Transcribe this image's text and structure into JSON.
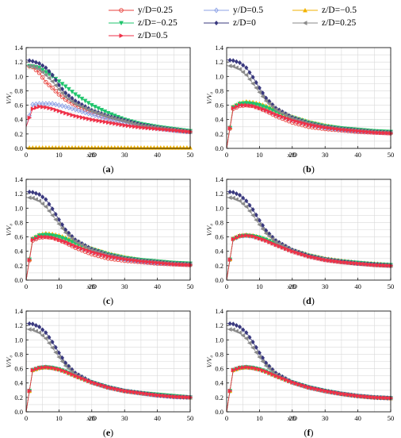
{
  "legend": {
    "entries": [
      {
        "key": "s1",
        "label": "y/D=0.25",
        "color": "#e8413c",
        "marker": "open-circle"
      },
      {
        "key": "s2",
        "label": "y/D=0.5",
        "color": "#8da2e6",
        "marker": "open-diamond"
      },
      {
        "key": "s3",
        "label": "z/D=−0.5",
        "color": "#f2b200",
        "marker": "triangle"
      },
      {
        "key": "s4",
        "label": "z/D=−0.25",
        "color": "#1fc46c",
        "marker": "triangle-down"
      },
      {
        "key": "s5",
        "label": "z/D=0",
        "color": "#39387e",
        "marker": "diamond"
      },
      {
        "key": "s6",
        "label": "z/D=0.25",
        "color": "#8a8a8a",
        "marker": "triangle-left"
      },
      {
        "key": "s7",
        "label": "z/D=0.5",
        "color": "#ef3048",
        "marker": "triangle-right"
      }
    ]
  },
  "chart_data": [
    {
      "type": "line",
      "caption": "(a)",
      "xlabel": "x/D",
      "ylabel": "V/V₀",
      "xlim": [
        0,
        50
      ],
      "ylim": [
        0,
        1.4
      ],
      "xticks": [
        0,
        10,
        20,
        30,
        40,
        50
      ],
      "yticks": [
        0,
        0.2,
        0.4,
        0.6,
        0.8,
        1.0,
        1.2,
        1.4
      ],
      "grid": true,
      "x": [
        0,
        2,
        4,
        6,
        8,
        10,
        12,
        15,
        20,
        25,
        30,
        35,
        40,
        45,
        50
      ],
      "series": [
        {
          "key": "s1",
          "values": [
            1.15,
            1.13,
            1.05,
            0.92,
            0.84,
            0.75,
            0.68,
            0.6,
            0.5,
            0.42,
            0.36,
            0.31,
            0.28,
            0.25,
            0.23
          ]
        },
        {
          "key": "s2",
          "values": [
            0.3,
            0.61,
            0.62,
            0.62,
            0.62,
            0.6,
            0.58,
            0.54,
            0.47,
            0.41,
            0.36,
            0.31,
            0.28,
            0.25,
            0.23
          ]
        },
        {
          "key": "s3",
          "values": [
            0.01,
            0.01,
            0.01,
            0.01,
            0.01,
            0.01,
            0.01,
            0.01,
            0.01,
            0.01,
            0.01,
            0.01,
            0.01,
            0.01,
            0.01
          ]
        },
        {
          "key": "s4",
          "values": [
            1.15,
            1.14,
            1.12,
            1.06,
            1.0,
            0.93,
            0.86,
            0.75,
            0.6,
            0.49,
            0.4,
            0.34,
            0.3,
            0.27,
            0.24
          ]
        },
        {
          "key": "s5",
          "values": [
            1.23,
            1.21,
            1.18,
            1.12,
            1.02,
            0.88,
            0.77,
            0.66,
            0.53,
            0.45,
            0.39,
            0.33,
            0.29,
            0.26,
            0.23
          ]
        },
        {
          "key": "s6",
          "values": [
            1.15,
            1.14,
            1.1,
            1.02,
            0.93,
            0.82,
            0.72,
            0.62,
            0.52,
            0.44,
            0.38,
            0.32,
            0.29,
            0.26,
            0.23
          ]
        },
        {
          "key": "s7",
          "values": [
            0.3,
            0.55,
            0.58,
            0.57,
            0.55,
            0.52,
            0.49,
            0.45,
            0.4,
            0.36,
            0.32,
            0.29,
            0.27,
            0.25,
            0.23
          ]
        }
      ]
    },
    {
      "type": "line",
      "caption": "(b)",
      "xlabel": "x/D",
      "ylabel": "V/V₀",
      "xlim": [
        0,
        50
      ],
      "ylim": [
        0,
        1.4
      ],
      "xticks": [
        0,
        10,
        20,
        30,
        40,
        50
      ],
      "yticks": [
        0,
        0.2,
        0.4,
        0.6,
        0.8,
        1.0,
        1.2,
        1.4
      ],
      "grid": true,
      "x": [
        0,
        2,
        4,
        6,
        8,
        10,
        12,
        15,
        20,
        25,
        30,
        35,
        40,
        45,
        50
      ],
      "series": [
        {
          "key": "s1",
          "values": [
            0.0,
            0.55,
            0.59,
            0.6,
            0.59,
            0.56,
            0.52,
            0.45,
            0.36,
            0.3,
            0.27,
            0.25,
            0.23,
            0.22,
            0.21
          ]
        },
        {
          "key": "s2",
          "values": [
            0.0,
            0.57,
            0.61,
            0.62,
            0.61,
            0.58,
            0.54,
            0.48,
            0.4,
            0.34,
            0.29,
            0.26,
            0.24,
            0.23,
            0.22
          ]
        },
        {
          "key": "s3",
          "values": [
            0.0,
            0.58,
            0.63,
            0.65,
            0.64,
            0.62,
            0.59,
            0.53,
            0.44,
            0.37,
            0.32,
            0.28,
            0.26,
            0.24,
            0.23
          ]
        },
        {
          "key": "s4",
          "values": [
            0.0,
            0.57,
            0.62,
            0.63,
            0.62,
            0.6,
            0.57,
            0.51,
            0.43,
            0.36,
            0.31,
            0.28,
            0.26,
            0.24,
            0.23
          ]
        },
        {
          "key": "s5",
          "values": [
            1.23,
            1.22,
            1.19,
            1.12,
            0.99,
            0.84,
            0.7,
            0.56,
            0.43,
            0.35,
            0.3,
            0.27,
            0.25,
            0.23,
            0.22
          ]
        },
        {
          "key": "s6",
          "values": [
            1.15,
            1.14,
            1.1,
            1.02,
            0.9,
            0.78,
            0.66,
            0.54,
            0.42,
            0.35,
            0.3,
            0.27,
            0.25,
            0.23,
            0.22
          ]
        },
        {
          "key": "s7",
          "values": [
            0.0,
            0.56,
            0.6,
            0.6,
            0.59,
            0.56,
            0.53,
            0.47,
            0.39,
            0.33,
            0.29,
            0.26,
            0.24,
            0.22,
            0.21
          ]
        }
      ]
    },
    {
      "type": "line",
      "caption": "(c)",
      "xlabel": "x/D",
      "ylabel": "V/V₀",
      "xlim": [
        0,
        50
      ],
      "ylim": [
        0,
        1.4
      ],
      "xticks": [
        0,
        10,
        20,
        30,
        40,
        50
      ],
      "yticks": [
        0,
        0.2,
        0.4,
        0.6,
        0.8,
        1.0,
        1.2,
        1.4
      ],
      "grid": true,
      "x": [
        0,
        2,
        4,
        6,
        8,
        10,
        12,
        15,
        20,
        25,
        30,
        35,
        40,
        45,
        50
      ],
      "series": [
        {
          "key": "s1",
          "values": [
            0.0,
            0.55,
            0.59,
            0.6,
            0.59,
            0.56,
            0.52,
            0.45,
            0.36,
            0.3,
            0.27,
            0.25,
            0.23,
            0.22,
            0.21
          ]
        },
        {
          "key": "s2",
          "values": [
            0.0,
            0.57,
            0.61,
            0.62,
            0.61,
            0.58,
            0.54,
            0.48,
            0.4,
            0.34,
            0.29,
            0.26,
            0.24,
            0.23,
            0.22
          ]
        },
        {
          "key": "s3",
          "values": [
            0.0,
            0.58,
            0.63,
            0.65,
            0.64,
            0.62,
            0.59,
            0.53,
            0.44,
            0.37,
            0.32,
            0.28,
            0.26,
            0.24,
            0.23
          ]
        },
        {
          "key": "s4",
          "values": [
            0.0,
            0.57,
            0.62,
            0.63,
            0.62,
            0.6,
            0.57,
            0.51,
            0.43,
            0.36,
            0.31,
            0.28,
            0.26,
            0.24,
            0.23
          ]
        },
        {
          "key": "s5",
          "values": [
            1.23,
            1.22,
            1.19,
            1.12,
            0.99,
            0.84,
            0.7,
            0.56,
            0.43,
            0.35,
            0.3,
            0.27,
            0.25,
            0.23,
            0.22
          ]
        },
        {
          "key": "s6",
          "values": [
            1.15,
            1.14,
            1.1,
            1.02,
            0.9,
            0.78,
            0.66,
            0.54,
            0.42,
            0.35,
            0.3,
            0.27,
            0.25,
            0.23,
            0.22
          ]
        },
        {
          "key": "s7",
          "values": [
            0.0,
            0.56,
            0.6,
            0.6,
            0.59,
            0.56,
            0.53,
            0.47,
            0.39,
            0.33,
            0.29,
            0.26,
            0.24,
            0.22,
            0.21
          ]
        }
      ]
    },
    {
      "type": "line",
      "caption": "(d)",
      "xlabel": "x/D",
      "ylabel": "V/V₀",
      "xlim": [
        0,
        50
      ],
      "ylim": [
        0,
        1.4
      ],
      "xticks": [
        0,
        10,
        20,
        30,
        40,
        50
      ],
      "yticks": [
        0,
        0.2,
        0.4,
        0.6,
        0.8,
        1.0,
        1.2,
        1.4
      ],
      "grid": true,
      "x": [
        0,
        2,
        4,
        6,
        8,
        10,
        12,
        15,
        20,
        25,
        30,
        35,
        40,
        45,
        50
      ],
      "series": [
        {
          "key": "s1",
          "values": [
            0.0,
            0.57,
            0.61,
            0.62,
            0.61,
            0.58,
            0.55,
            0.49,
            0.4,
            0.33,
            0.28,
            0.25,
            0.23,
            0.21,
            0.2
          ]
        },
        {
          "key": "s2",
          "values": [
            0.0,
            0.57,
            0.61,
            0.62,
            0.61,
            0.59,
            0.56,
            0.5,
            0.41,
            0.34,
            0.29,
            0.26,
            0.24,
            0.22,
            0.21
          ]
        },
        {
          "key": "s3",
          "values": [
            0.0,
            0.58,
            0.62,
            0.63,
            0.62,
            0.6,
            0.57,
            0.51,
            0.42,
            0.35,
            0.3,
            0.27,
            0.24,
            0.23,
            0.21
          ]
        },
        {
          "key": "s4",
          "values": [
            0.0,
            0.57,
            0.61,
            0.62,
            0.61,
            0.59,
            0.56,
            0.5,
            0.41,
            0.34,
            0.29,
            0.26,
            0.24,
            0.22,
            0.21
          ]
        },
        {
          "key": "s5",
          "values": [
            1.23,
            1.22,
            1.18,
            1.1,
            0.98,
            0.83,
            0.69,
            0.55,
            0.42,
            0.34,
            0.29,
            0.26,
            0.23,
            0.22,
            0.2
          ]
        },
        {
          "key": "s6",
          "values": [
            1.15,
            1.14,
            1.1,
            1.02,
            0.9,
            0.77,
            0.65,
            0.53,
            0.41,
            0.33,
            0.29,
            0.25,
            0.23,
            0.21,
            0.2
          ]
        },
        {
          "key": "s7",
          "values": [
            0.0,
            0.57,
            0.61,
            0.62,
            0.61,
            0.58,
            0.55,
            0.49,
            0.4,
            0.33,
            0.28,
            0.25,
            0.23,
            0.21,
            0.2
          ]
        }
      ]
    },
    {
      "type": "line",
      "caption": "(e)",
      "xlabel": "x/D",
      "ylabel": "V/V₀",
      "xlim": [
        0,
        50
      ],
      "ylim": [
        0,
        1.4
      ],
      "xticks": [
        0,
        10,
        20,
        30,
        40,
        50
      ],
      "yticks": [
        0,
        0.2,
        0.4,
        0.6,
        0.8,
        1.0,
        1.2,
        1.4
      ],
      "grid": true,
      "x": [
        0,
        2,
        4,
        6,
        8,
        10,
        12,
        15,
        20,
        25,
        30,
        35,
        40,
        45,
        50
      ],
      "series": [
        {
          "key": "s1",
          "values": [
            0.0,
            0.58,
            0.61,
            0.62,
            0.61,
            0.59,
            0.56,
            0.5,
            0.41,
            0.34,
            0.29,
            0.26,
            0.23,
            0.21,
            0.2
          ]
        },
        {
          "key": "s2",
          "values": [
            0.0,
            0.58,
            0.61,
            0.62,
            0.61,
            0.59,
            0.56,
            0.5,
            0.41,
            0.34,
            0.29,
            0.26,
            0.23,
            0.21,
            0.2
          ]
        },
        {
          "key": "s3",
          "values": [
            0.0,
            0.58,
            0.61,
            0.62,
            0.61,
            0.59,
            0.56,
            0.5,
            0.41,
            0.34,
            0.29,
            0.26,
            0.24,
            0.22,
            0.2
          ]
        },
        {
          "key": "s4",
          "values": [
            0.0,
            0.58,
            0.61,
            0.62,
            0.61,
            0.59,
            0.56,
            0.5,
            0.41,
            0.34,
            0.29,
            0.26,
            0.24,
            0.22,
            0.2
          ]
        },
        {
          "key": "s5",
          "values": [
            1.23,
            1.22,
            1.18,
            1.1,
            0.97,
            0.82,
            0.68,
            0.54,
            0.41,
            0.34,
            0.29,
            0.26,
            0.23,
            0.21,
            0.2
          ]
        },
        {
          "key": "s6",
          "values": [
            1.15,
            1.14,
            1.1,
            1.02,
            0.89,
            0.76,
            0.64,
            0.52,
            0.4,
            0.33,
            0.29,
            0.25,
            0.23,
            0.21,
            0.2
          ]
        },
        {
          "key": "s7",
          "values": [
            0.0,
            0.58,
            0.61,
            0.62,
            0.61,
            0.59,
            0.56,
            0.5,
            0.41,
            0.34,
            0.29,
            0.26,
            0.23,
            0.21,
            0.2
          ]
        }
      ]
    },
    {
      "type": "line",
      "caption": "(f)",
      "xlabel": "x/D",
      "ylabel": "V/V₀",
      "xlim": [
        0,
        50
      ],
      "ylim": [
        0,
        1.4
      ],
      "xticks": [
        0,
        10,
        20,
        30,
        40,
        50
      ],
      "yticks": [
        0,
        0.2,
        0.4,
        0.6,
        0.8,
        1.0,
        1.2,
        1.4
      ],
      "grid": true,
      "x": [
        0,
        2,
        4,
        6,
        8,
        10,
        12,
        15,
        20,
        25,
        30,
        35,
        40,
        45,
        50
      ],
      "series": [
        {
          "key": "s1",
          "values": [
            0.0,
            0.58,
            0.61,
            0.62,
            0.61,
            0.59,
            0.56,
            0.5,
            0.41,
            0.34,
            0.29,
            0.25,
            0.22,
            0.2,
            0.19
          ]
        },
        {
          "key": "s2",
          "values": [
            0.0,
            0.58,
            0.61,
            0.62,
            0.61,
            0.59,
            0.56,
            0.5,
            0.41,
            0.34,
            0.29,
            0.25,
            0.22,
            0.2,
            0.19
          ]
        },
        {
          "key": "s3",
          "values": [
            0.0,
            0.58,
            0.61,
            0.62,
            0.61,
            0.59,
            0.56,
            0.5,
            0.41,
            0.34,
            0.29,
            0.25,
            0.22,
            0.2,
            0.19
          ]
        },
        {
          "key": "s4",
          "values": [
            0.0,
            0.58,
            0.61,
            0.62,
            0.61,
            0.59,
            0.56,
            0.5,
            0.41,
            0.34,
            0.29,
            0.25,
            0.22,
            0.2,
            0.19
          ]
        },
        {
          "key": "s5",
          "values": [
            1.23,
            1.22,
            1.18,
            1.1,
            0.97,
            0.82,
            0.68,
            0.54,
            0.41,
            0.34,
            0.29,
            0.25,
            0.22,
            0.2,
            0.19
          ]
        },
        {
          "key": "s6",
          "values": [
            1.15,
            1.14,
            1.1,
            1.02,
            0.89,
            0.76,
            0.64,
            0.52,
            0.4,
            0.33,
            0.28,
            0.25,
            0.22,
            0.2,
            0.19
          ]
        },
        {
          "key": "s7",
          "values": [
            0.0,
            0.58,
            0.61,
            0.62,
            0.61,
            0.59,
            0.56,
            0.5,
            0.41,
            0.34,
            0.29,
            0.25,
            0.22,
            0.2,
            0.19
          ]
        }
      ]
    }
  ]
}
